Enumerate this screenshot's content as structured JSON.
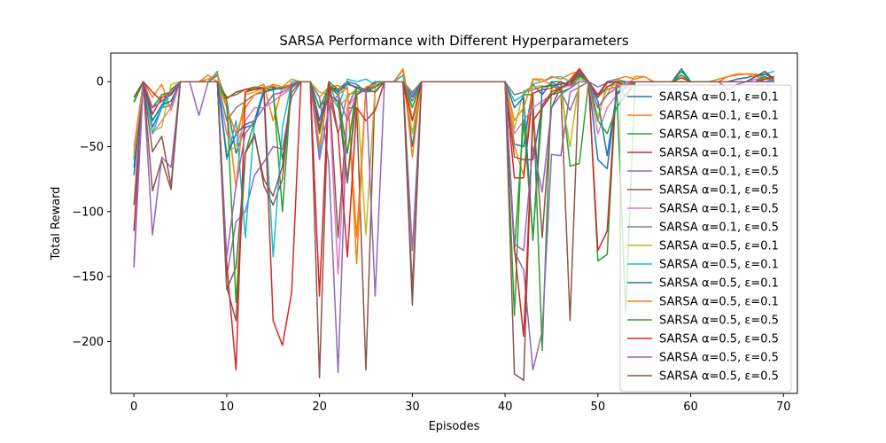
{
  "chart_data": {
    "type": "line",
    "title": "SARSA Performance with Different Hyperparameters",
    "xlabel": "Episodes",
    "ylabel": "Total Reward",
    "xlim": [
      -2.5,
      71.5
    ],
    "ylim": [
      -240,
      22
    ],
    "xticks": [
      0,
      10,
      20,
      30,
      40,
      50,
      60,
      70
    ],
    "yticks": [
      0,
      -50,
      -100,
      -150,
      -200
    ],
    "legend_position": "right",
    "grid": false,
    "x": [
      0,
      1,
      2,
      3,
      4,
      5,
      6,
      7,
      8,
      9,
      10,
      11,
      12,
      13,
      14,
      15,
      16,
      17,
      18,
      19,
      20,
      21,
      22,
      23,
      24,
      25,
      26,
      27,
      28,
      29,
      30,
      31,
      32,
      33,
      34,
      35,
      36,
      37,
      38,
      39,
      40,
      41,
      42,
      43,
      44,
      45,
      46,
      47,
      48,
      49,
      50,
      51,
      52,
      53,
      54,
      55,
      56,
      57,
      58,
      59,
      60,
      61,
      62,
      63,
      64,
      65,
      66,
      67,
      68,
      69
    ],
    "series": [
      {
        "name": "SARSA α=0.1, ε=0.1",
        "color": "#1f77b4",
        "values": [
          -72,
          0,
          -35,
          -20,
          -18,
          0,
          0,
          0,
          0,
          5,
          -15,
          -55,
          -35,
          -33,
          -8,
          -5,
          -4,
          -2,
          0,
          0,
          -30,
          -4,
          -6,
          0,
          -2,
          -8,
          0,
          0,
          0,
          5,
          -50,
          0,
          0,
          0,
          0,
          0,
          0,
          0,
          0,
          0,
          0,
          -48,
          -50,
          -2,
          -10,
          0,
          -5,
          0,
          5,
          0,
          -60,
          -67,
          -10,
          0,
          0,
          0,
          0,
          0,
          0,
          5,
          0,
          0,
          0,
          0,
          0,
          2,
          3,
          5,
          6,
          2
        ]
      },
      {
        "name": "SARSA α=0.1, ε=0.1",
        "color": "#ff7f0e",
        "values": [
          -55,
          0,
          -12,
          -2,
          -22,
          0,
          0,
          0,
          5,
          0,
          -20,
          -82,
          -8,
          -5,
          -2,
          -30,
          -4,
          2,
          0,
          0,
          -12,
          -4,
          -3,
          -6,
          -120,
          -5,
          0,
          0,
          0,
          9,
          -58,
          0,
          0,
          0,
          0,
          0,
          0,
          0,
          0,
          0,
          0,
          -50,
          -72,
          2,
          2,
          -3,
          -5,
          2,
          10,
          0,
          -30,
          0,
          2,
          -5,
          4,
          4,
          0,
          0,
          0,
          0,
          0,
          0,
          0,
          2,
          4,
          5,
          6,
          6,
          3,
          2
        ]
      },
      {
        "name": "SARSA α=0.1, ε=0.1",
        "color": "#2ca02c",
        "values": [
          -15,
          0,
          -30,
          -18,
          -6,
          0,
          0,
          0,
          0,
          0,
          -12,
          -10,
          -6,
          -4,
          -5,
          -6,
          -100,
          0,
          0,
          0,
          -40,
          0,
          -6,
          -76,
          -5,
          -8,
          -4,
          0,
          0,
          0,
          -8,
          0,
          0,
          0,
          0,
          0,
          0,
          0,
          0,
          0,
          0,
          -180,
          -10,
          -10,
          -207,
          0,
          0,
          -65,
          -63,
          0,
          -138,
          -133,
          0,
          -178,
          0,
          0,
          0,
          0,
          0,
          8,
          0,
          0,
          0,
          0,
          0,
          0,
          0,
          0,
          4,
          0
        ]
      },
      {
        "name": "SARSA α=0.1, ε=0.1",
        "color": "#d62728",
        "values": [
          -115,
          0,
          -8,
          -15,
          -8,
          0,
          0,
          0,
          0,
          0,
          -13,
          -8,
          -6,
          -6,
          -4,
          -4,
          -6,
          -3,
          0,
          0,
          -37,
          -2,
          -8,
          -1,
          -5,
          -6,
          -4,
          0,
          0,
          0,
          -40,
          0,
          0,
          0,
          0,
          0,
          0,
          0,
          0,
          0,
          0,
          -74,
          -74,
          -9,
          -6,
          -5,
          0,
          -3,
          6,
          0,
          -130,
          -115,
          0,
          -3,
          0,
          0,
          0,
          0,
          0,
          3,
          0,
          0,
          0,
          0,
          0,
          0,
          0,
          2,
          0,
          2
        ]
      },
      {
        "name": "SARSA α=0.1, ε=0.5",
        "color": "#9467bd",
        "values": [
          -143,
          0,
          -118,
          -58,
          -66,
          0,
          0,
          -26,
          0,
          0,
          -150,
          -108,
          -100,
          -72,
          -62,
          -50,
          -52,
          -12,
          0,
          0,
          -12,
          -63,
          -224,
          -20,
          -4,
          -8,
          -7,
          0,
          0,
          0,
          -9,
          0,
          0,
          0,
          0,
          0,
          0,
          0,
          0,
          0,
          0,
          -131,
          -145,
          -222,
          -192,
          -56,
          -57,
          -8,
          -4,
          0,
          -4,
          -1,
          0,
          0,
          0,
          0,
          0,
          0,
          0,
          0,
          0,
          0,
          0,
          0,
          -6,
          -2,
          0,
          0,
          0,
          0
        ]
      },
      {
        "name": "SARSA α=0.1, ε=0.5",
        "color": "#8c564b",
        "values": [
          -95,
          0,
          -84,
          -60,
          -83,
          0,
          0,
          0,
          0,
          0,
          -158,
          -184,
          -55,
          -40,
          -80,
          -95,
          -75,
          0,
          0,
          0,
          -228,
          0,
          -120,
          -20,
          -20,
          -222,
          0,
          0,
          0,
          0,
          -172,
          0,
          0,
          0,
          0,
          0,
          0,
          0,
          0,
          0,
          0,
          -225,
          -230,
          -20,
          -120,
          -20,
          -4,
          -184,
          10,
          0,
          -12,
          0,
          0,
          -12,
          0,
          0,
          0,
          0,
          0,
          0,
          0,
          0,
          0,
          0,
          0,
          0,
          0,
          4,
          8,
          0
        ]
      },
      {
        "name": "SARSA α=0.1, ε=0.5",
        "color": "#e377c2",
        "values": [
          -50,
          0,
          -40,
          -30,
          -20,
          0,
          0,
          0,
          0,
          0,
          -40,
          -50,
          -30,
          -20,
          -20,
          -15,
          -10,
          -5,
          0,
          0,
          -35,
          -10,
          -148,
          -20,
          -10,
          -5,
          -3,
          0,
          0,
          0,
          -10,
          0,
          0,
          0,
          0,
          0,
          0,
          0,
          0,
          0,
          0,
          -40,
          -30,
          -20,
          -15,
          -10,
          -5,
          -3,
          0,
          0,
          -40,
          -20,
          -10,
          -5,
          0,
          0,
          0,
          0,
          0,
          0,
          0,
          0,
          0,
          0,
          0,
          0,
          0,
          2,
          2,
          4
        ]
      },
      {
        "name": "SARSA α=0.1, ε=0.5",
        "color": "#7f7f7f",
        "values": [
          -60,
          0,
          -20,
          -15,
          -10,
          0,
          0,
          0,
          0,
          0,
          -30,
          -20,
          -15,
          -10,
          -8,
          -6,
          -4,
          -2,
          0,
          0,
          -20,
          -10,
          -40,
          -10,
          -8,
          -6,
          -4,
          0,
          0,
          0,
          -15,
          0,
          0,
          0,
          0,
          0,
          0,
          0,
          0,
          0,
          0,
          -10,
          -8,
          -6,
          -4,
          -2,
          -8,
          -22,
          -4,
          0,
          -10,
          -6,
          -4,
          -2,
          0,
          0,
          0,
          0,
          0,
          0,
          0,
          0,
          0,
          0,
          0,
          0,
          0,
          0,
          2,
          4
        ]
      },
      {
        "name": "SARSA α=0.5, ε=0.1",
        "color": "#bcbd22",
        "values": [
          -55,
          0,
          -38,
          -35,
          -2,
          0,
          0,
          0,
          0,
          0,
          -54,
          -50,
          -10,
          -8,
          -4,
          -3,
          -6,
          -2,
          0,
          0,
          -8,
          -10,
          -20,
          -12,
          -5,
          -118,
          -2,
          0,
          0,
          5,
          -40,
          0,
          0,
          0,
          0,
          0,
          0,
          0,
          0,
          0,
          0,
          -36,
          -7,
          -4,
          -3,
          -6,
          -8,
          -50,
          2,
          0,
          -27,
          -4,
          -2,
          0,
          0,
          0,
          0,
          0,
          0,
          0,
          0,
          0,
          0,
          0,
          0,
          0,
          0,
          0,
          2,
          2
        ]
      },
      {
        "name": "SARSA α=0.5, ε=0.1",
        "color": "#17becf",
        "values": [
          -60,
          0,
          -40,
          -20,
          -8,
          0,
          0,
          0,
          0,
          8,
          -60,
          -30,
          -120,
          -30,
          -5,
          -135,
          -35,
          0,
          0,
          0,
          -55,
          0,
          -20,
          2,
          0,
          2,
          -2,
          0,
          0,
          5,
          -20,
          0,
          0,
          0,
          0,
          0,
          0,
          0,
          0,
          0,
          0,
          -15,
          -10,
          -2,
          0,
          3,
          4,
          0,
          8,
          0,
          -10,
          0,
          2,
          0,
          0,
          0,
          0,
          0,
          0,
          0,
          0,
          0,
          0,
          0,
          0,
          0,
          0,
          0,
          6,
          8
        ]
      },
      {
        "name": "SARSA α=0.5, ε=0.1",
        "color": "#1f77b4",
        "values": [
          -66,
          0,
          -30,
          -18,
          -15,
          0,
          0,
          0,
          0,
          0,
          -58,
          -40,
          -33,
          -30,
          -8,
          -6,
          -5,
          -2,
          0,
          0,
          -30,
          -4,
          -8,
          -2,
          -4,
          -6,
          0,
          0,
          0,
          0,
          -12,
          0,
          0,
          0,
          0,
          0,
          0,
          0,
          0,
          0,
          0,
          -20,
          -12,
          -122,
          -4,
          -3,
          -2,
          0,
          6,
          0,
          -15,
          -57,
          -10,
          -4,
          0,
          0,
          0,
          0,
          0,
          10,
          0,
          0,
          0,
          0,
          0,
          0,
          0,
          4,
          6,
          2
        ]
      },
      {
        "name": "SARSA α=0.5, ε=0.1",
        "color": "#ff7f0e",
        "values": [
          -58,
          0,
          -20,
          -10,
          -10,
          0,
          0,
          0,
          2,
          6,
          -20,
          -40,
          -20,
          -10,
          -6,
          -2,
          -4,
          -2,
          0,
          0,
          -50,
          -4,
          -10,
          -4,
          -140,
          -4,
          -2,
          0,
          0,
          10,
          -30,
          0,
          0,
          0,
          0,
          0,
          0,
          0,
          0,
          0,
          0,
          -30,
          -20,
          2,
          0,
          4,
          2,
          6,
          8,
          0,
          -20,
          -10,
          2,
          4,
          2,
          4,
          0,
          0,
          0,
          0,
          0,
          0,
          0,
          0,
          4,
          6,
          6,
          4,
          2,
          2
        ]
      },
      {
        "name": "SARSA α=0.5, ε=0.5",
        "color": "#2ca02c",
        "values": [
          -16,
          0,
          -20,
          -10,
          -8,
          0,
          0,
          0,
          0,
          0,
          -15,
          -170,
          -55,
          -30,
          -20,
          -10,
          -60,
          -8,
          0,
          0,
          -20,
          -4,
          -10,
          -55,
          -4,
          -6,
          -4,
          0,
          0,
          0,
          -20,
          0,
          0,
          0,
          0,
          0,
          0,
          0,
          0,
          0,
          0,
          -130,
          -30,
          -120,
          -20,
          -10,
          -8,
          -5,
          4,
          0,
          -30,
          -40,
          -20,
          -10,
          0,
          0,
          0,
          0,
          0,
          5,
          0,
          0,
          0,
          0,
          0,
          0,
          0,
          0,
          4,
          0
        ]
      },
      {
        "name": "SARSA α=0.5, ε=0.5",
        "color": "#d62728",
        "values": [
          -12,
          0,
          -25,
          -12,
          -10,
          0,
          0,
          0,
          0,
          0,
          -140,
          -222,
          -8,
          -6,
          -5,
          -184,
          -203,
          -162,
          0,
          0,
          -165,
          0,
          -40,
          -135,
          -20,
          -30,
          -22,
          0,
          0,
          0,
          -30,
          0,
          0,
          0,
          0,
          0,
          0,
          0,
          0,
          0,
          0,
          -128,
          -196,
          -30,
          -20,
          -10,
          -5,
          0,
          10,
          0,
          -10,
          0,
          0,
          -4,
          0,
          0,
          0,
          0,
          0,
          0,
          0,
          0,
          0,
          0,
          0,
          0,
          0,
          0,
          2,
          4
        ]
      },
      {
        "name": "SARSA α=0.5, ε=0.5",
        "color": "#9467bd",
        "values": [
          -138,
          0,
          -20,
          -15,
          -8,
          0,
          0,
          0,
          0,
          0,
          -135,
          -80,
          -40,
          -30,
          -20,
          -10,
          -8,
          -4,
          0,
          0,
          -60,
          -20,
          -10,
          -30,
          -10,
          -5,
          -165,
          0,
          0,
          0,
          -130,
          0,
          0,
          0,
          0,
          0,
          0,
          0,
          0,
          0,
          0,
          -125,
          -130,
          -50,
          -85,
          -20,
          -10,
          -5,
          0,
          0,
          -20,
          -10,
          -5,
          -2,
          0,
          0,
          0,
          0,
          0,
          0,
          0,
          0,
          0,
          0,
          0,
          0,
          0,
          0,
          0,
          2
        ]
      },
      {
        "name": "SARSA α=0.5, ε=0.5",
        "color": "#8c564b",
        "values": [
          -12,
          0,
          -54,
          -42,
          -80,
          0,
          0,
          0,
          0,
          0,
          -160,
          -143,
          -55,
          -42,
          -75,
          -88,
          -65,
          -2,
          0,
          0,
          -35,
          -10,
          -15,
          -78,
          -10,
          -6,
          -8,
          0,
          0,
          0,
          -160,
          0,
          0,
          0,
          0,
          0,
          0,
          0,
          0,
          0,
          0,
          -58,
          -60,
          -60,
          -18,
          -8,
          -4,
          -2,
          8,
          0,
          -12,
          -4,
          0,
          0,
          0,
          0,
          0,
          0,
          0,
          0,
          0,
          0,
          0,
          0,
          0,
          0,
          0,
          4,
          8,
          2
        ]
      }
    ]
  }
}
